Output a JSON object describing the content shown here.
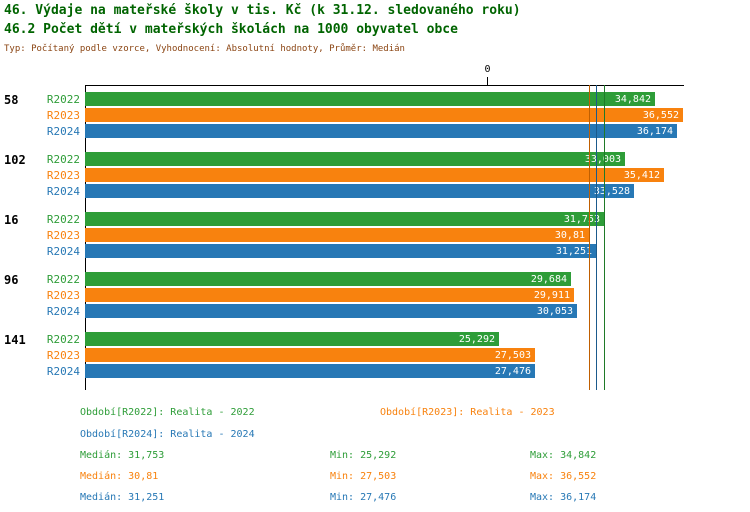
{
  "header": {
    "title1": "46. Výdaje na mateřské školy v tis. Kč (k 31.12. sledovaného roku)",
    "title2": "46.2 Počet dětí v mateřských školách na 1000 obyvatel obce",
    "meta": "Typ: Počítaný podle vzorce, Vyhodnocení: Absolutní hodnoty, Průměr: Medián"
  },
  "chart_data": {
    "type": "bar",
    "orientation": "horizontal",
    "title": "46. Výdaje na mateřské školy v tis. Kč (k 31.12. sledovaného roku)",
    "subtitle": "46.2 Počet dětí v mateřských školách na 1000 obyvatel obce",
    "x_axis": {
      "top_tick_label": "0"
    },
    "xlim": [
      0,
      36.552
    ],
    "series": [
      {
        "name": "R2022",
        "color": "#2e9d38",
        "line_color": "#1f7a28",
        "median": 31.753
      },
      {
        "name": "R2023",
        "color": "#f8820e",
        "line_color": "#c05f00",
        "median": 30.81
      },
      {
        "name": "R2024",
        "color": "#2778b5",
        "line_color": "#1b5a8c",
        "median": 31.251
      }
    ],
    "groups": [
      {
        "id": "58",
        "values": [
          34.842,
          36.552,
          36.174
        ],
        "labels": [
          "34,842",
          "36,552",
          "36,174"
        ]
      },
      {
        "id": "102",
        "values": [
          33.003,
          35.412,
          33.528
        ],
        "labels": [
          "33,003",
          "35,412",
          "33,528"
        ]
      },
      {
        "id": "16",
        "values": [
          31.753,
          30.81,
          31.251
        ],
        "labels": [
          "31,753",
          "30,81",
          "31,251"
        ]
      },
      {
        "id": "96",
        "values": [
          29.684,
          29.911,
          30.053
        ],
        "labels": [
          "29,684",
          "29,911",
          "30,053"
        ]
      },
      {
        "id": "141",
        "values": [
          25.292,
          27.503,
          27.476
        ],
        "labels": [
          "25,292",
          "27,503",
          "27,476"
        ]
      }
    ]
  },
  "legend": {
    "r2022": "Období[R2022]: Realita - 2022",
    "r2023": "Období[R2023]: Realita - 2023",
    "r2024": "Období[R2024]: Realita - 2024"
  },
  "stats": {
    "r2022": {
      "median": "Medián: 31,753",
      "min": "Min: 25,292",
      "max": "Max: 34,842"
    },
    "r2023": {
      "median": "Medián: 30,81",
      "min": "Min: 27,503",
      "max": "Max: 36,552"
    },
    "r2024": {
      "median": "Medián: 31,251",
      "min": "Min: 27,476",
      "max": "Max: 36,174"
    }
  },
  "colors": {
    "title": "#006400",
    "meta": "#8b4513",
    "r2022": "#2e9d38",
    "r2023": "#f8820e",
    "r2024": "#2778b5"
  }
}
